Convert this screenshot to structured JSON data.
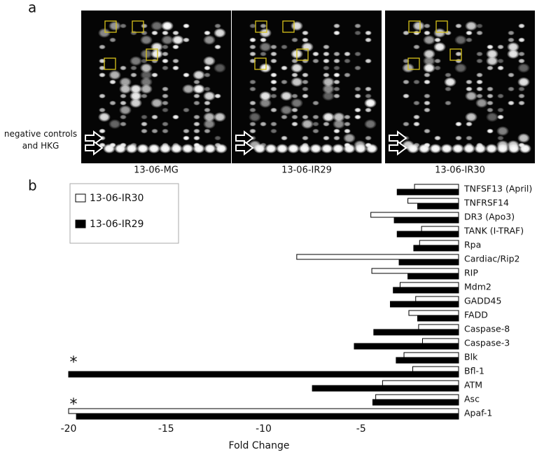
{
  "panel_a": {
    "label": "a",
    "note": "negative controls and HKG",
    "images": [
      "13-06-MG",
      "13-06-IR29",
      "13-06-IR30"
    ]
  },
  "panel_b": {
    "label": "b"
  },
  "chart_data": {
    "type": "hbar",
    "categories": [
      "TNFSF13 (April)",
      "TNFRSF14",
      "DR3 (Apo3)",
      "TANK (I-TRAF)",
      "Rpa",
      "Cardiac/Rip2",
      "RIP",
      "Mdm2",
      "GADD45",
      "FADD",
      "Caspase-8",
      "Caspase-3",
      "Blk",
      "Bfl-1",
      "ATM",
      "Asc",
      "Apaf-1"
    ],
    "series": [
      {
        "name": "13-06-IR30",
        "color": "#ffffff",
        "values": [
          -2.26,
          -2.6,
          -4.5,
          -1.9,
          -2.0,
          -8.3,
          -4.45,
          -3.0,
          -2.2,
          -2.55,
          -2.05,
          -1.85,
          -2.8,
          -2.35,
          -3.9,
          -4.25,
          -20
        ]
      },
      {
        "name": "13-06-IR29",
        "color": "#000000",
        "values": [
          -3.15,
          -2.1,
          -3.3,
          -3.15,
          -2.3,
          -3.05,
          -2.6,
          -3.35,
          -3.5,
          -2.1,
          -4.35,
          -5.35,
          -3.2,
          -20,
          -7.5,
          -4.4,
          -19.6
        ]
      }
    ],
    "xlabel": "Fold Change",
    "xlim": [
      -20,
      0
    ],
    "xticks": [
      -20,
      -15,
      -10,
      -5
    ],
    "annotations": [
      {
        "text": "*",
        "category": "Bfl-1"
      },
      {
        "text": "*",
        "category": "Apaf-1"
      }
    ]
  }
}
